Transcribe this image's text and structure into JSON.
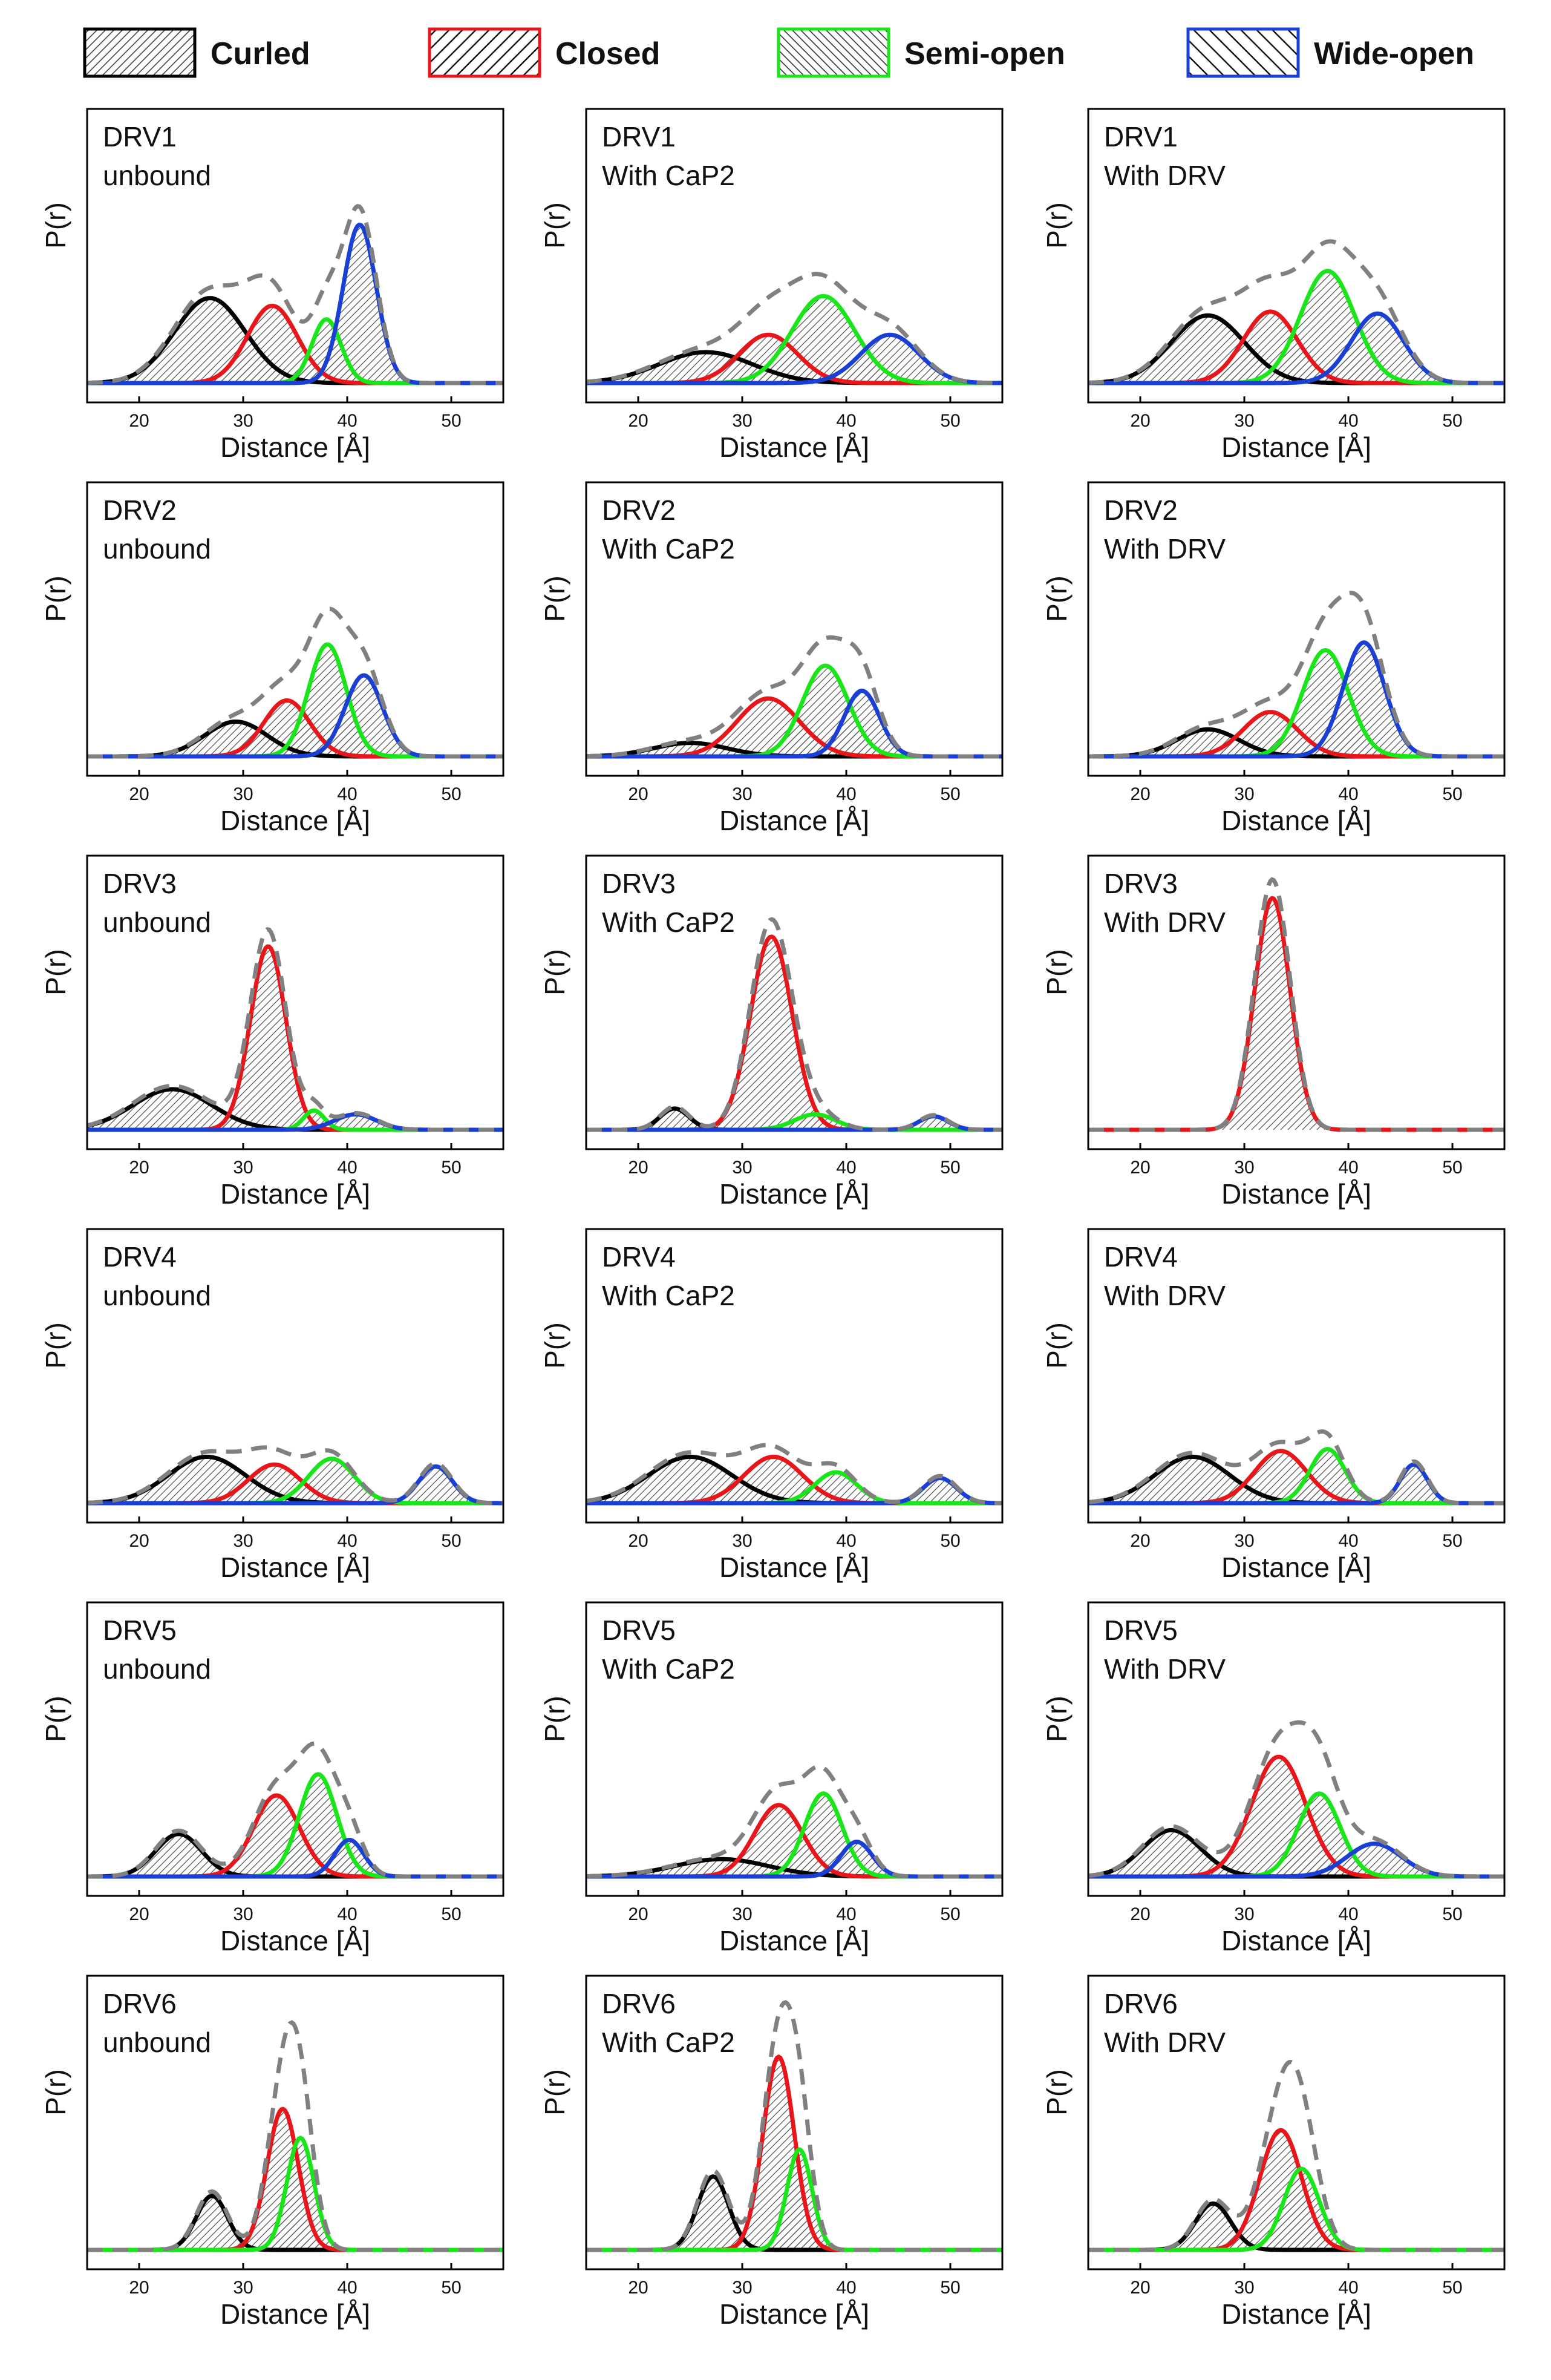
{
  "chart_data": {
    "type": "line",
    "description_series": "Gaussian fits of distance distributions P(r) for six DRV constructs under three conditions",
    "legend": [
      {
        "name": "Curled",
        "color": "#000000"
      },
      {
        "name": "Closed",
        "color": "#e8161b"
      },
      {
        "name": "Semi-open",
        "color": "#19e619"
      },
      {
        "name": "Wide-open",
        "color": "#1a3fd4"
      }
    ],
    "total_color": "#808080",
    "xlabel": "Distance [Å]",
    "ylabel": "P(r)",
    "xlim": [
      15,
      55
    ],
    "xticks": [
      20,
      30,
      40,
      50
    ],
    "panels": [
      {
        "title": "DRV1",
        "condition": "unbound",
        "ymax": 1.0,
        "components": [
          {
            "state": "Curled",
            "center": 26.8,
            "sigma": 3.4,
            "height": 0.44
          },
          {
            "state": "Closed",
            "center": 32.8,
            "sigma": 2.4,
            "height": 0.4
          },
          {
            "state": "Semi-open",
            "center": 38.0,
            "sigma": 1.4,
            "height": 0.33
          },
          {
            "state": "Wide-open",
            "center": 41.2,
            "sigma": 1.6,
            "height": 0.82
          }
        ]
      },
      {
        "title": "DRV1",
        "condition": "With CaP2",
        "ymax": 1.0,
        "components": [
          {
            "state": "Curled",
            "center": 26.5,
            "sigma": 4.5,
            "height": 0.16
          },
          {
            "state": "Closed",
            "center": 32.5,
            "sigma": 2.8,
            "height": 0.25
          },
          {
            "state": "Semi-open",
            "center": 37.8,
            "sigma": 3.0,
            "height": 0.45
          },
          {
            "state": "Wide-open",
            "center": 44.2,
            "sigma": 2.8,
            "height": 0.25
          }
        ]
      },
      {
        "title": "DRV1",
        "condition": "With DRV",
        "ymax": 1.0,
        "components": [
          {
            "state": "Curled",
            "center": 26.5,
            "sigma": 3.5,
            "height": 0.35
          },
          {
            "state": "Closed",
            "center": 32.5,
            "sigma": 2.6,
            "height": 0.37
          },
          {
            "state": "Semi-open",
            "center": 38.0,
            "sigma": 2.6,
            "height": 0.58
          },
          {
            "state": "Wide-open",
            "center": 42.8,
            "sigma": 2.5,
            "height": 0.36
          }
        ]
      },
      {
        "title": "DRV2",
        "condition": "unbound",
        "ymax": 1.0,
        "components": [
          {
            "state": "Curled",
            "center": 29.3,
            "sigma": 3.0,
            "height": 0.18
          },
          {
            "state": "Closed",
            "center": 34.2,
            "sigma": 2.2,
            "height": 0.29
          },
          {
            "state": "Semi-open",
            "center": 38.1,
            "sigma": 1.8,
            "height": 0.58
          },
          {
            "state": "Wide-open",
            "center": 41.6,
            "sigma": 1.8,
            "height": 0.42
          }
        ]
      },
      {
        "title": "DRV2",
        "condition": "With CaP2",
        "ymax": 1.0,
        "components": [
          {
            "state": "Curled",
            "center": 25.0,
            "sigma": 3.5,
            "height": 0.07
          },
          {
            "state": "Closed",
            "center": 32.5,
            "sigma": 3.0,
            "height": 0.3
          },
          {
            "state": "Semi-open",
            "center": 38.0,
            "sigma": 2.2,
            "height": 0.47
          },
          {
            "state": "Wide-open",
            "center": 41.5,
            "sigma": 1.7,
            "height": 0.34
          }
        ]
      },
      {
        "title": "DRV2",
        "condition": "With DRV",
        "ymax": 1.0,
        "components": [
          {
            "state": "Curled",
            "center": 26.5,
            "sigma": 3.0,
            "height": 0.14
          },
          {
            "state": "Closed",
            "center": 32.5,
            "sigma": 2.6,
            "height": 0.23
          },
          {
            "state": "Semi-open",
            "center": 37.8,
            "sigma": 2.2,
            "height": 0.55
          },
          {
            "state": "Wide-open",
            "center": 41.5,
            "sigma": 2.0,
            "height": 0.59
          }
        ]
      },
      {
        "title": "DRV3",
        "condition": "unbound",
        "ymax": 1.0,
        "components": [
          {
            "state": "Curled",
            "center": 23.2,
            "sigma": 3.8,
            "height": 0.21
          },
          {
            "state": "Closed",
            "center": 32.4,
            "sigma": 1.7,
            "height": 0.95
          },
          {
            "state": "Semi-open",
            "center": 36.8,
            "sigma": 1.0,
            "height": 0.1
          },
          {
            "state": "Wide-open",
            "center": 40.8,
            "sigma": 2.0,
            "height": 0.08
          }
        ]
      },
      {
        "title": "DRV3",
        "condition": "With CaP2",
        "ymax": 1.0,
        "components": [
          {
            "state": "Curled",
            "center": 23.5,
            "sigma": 1.4,
            "height": 0.11
          },
          {
            "state": "Closed",
            "center": 32.8,
            "sigma": 2.0,
            "height": 1.0
          },
          {
            "state": "Semi-open",
            "center": 37.0,
            "sigma": 2.0,
            "height": 0.08
          },
          {
            "state": "Wide-open",
            "center": 48.4,
            "sigma": 1.4,
            "height": 0.07
          }
        ]
      },
      {
        "title": "DRV3",
        "condition": "With DRV",
        "ymax": 1.0,
        "components": [
          {
            "state": "Closed",
            "center": 32.7,
            "sigma": 1.7,
            "height": 1.2
          }
        ]
      },
      {
        "title": "DRV4",
        "condition": "unbound",
        "ymax": 1.0,
        "components": [
          {
            "state": "Curled",
            "center": 26.5,
            "sigma": 3.7,
            "height": 0.24
          },
          {
            "state": "Closed",
            "center": 33.0,
            "sigma": 2.5,
            "height": 0.2
          },
          {
            "state": "Semi-open",
            "center": 38.5,
            "sigma": 2.2,
            "height": 0.23
          },
          {
            "state": "Wide-open",
            "center": 48.5,
            "sigma": 1.6,
            "height": 0.19
          }
        ]
      },
      {
        "title": "DRV4",
        "condition": "With CaP2",
        "ymax": 1.0,
        "components": [
          {
            "state": "Curled",
            "center": 25.0,
            "sigma": 4.0,
            "height": 0.24
          },
          {
            "state": "Closed",
            "center": 33.0,
            "sigma": 2.8,
            "height": 0.24
          },
          {
            "state": "Semi-open",
            "center": 39.0,
            "sigma": 2.0,
            "height": 0.16
          },
          {
            "state": "Wide-open",
            "center": 49.0,
            "sigma": 1.6,
            "height": 0.13
          }
        ]
      },
      {
        "title": "DRV4",
        "condition": "With DRV",
        "ymax": 1.0,
        "components": [
          {
            "state": "Curled",
            "center": 25.0,
            "sigma": 3.6,
            "height": 0.24
          },
          {
            "state": "Closed",
            "center": 33.5,
            "sigma": 2.5,
            "height": 0.27
          },
          {
            "state": "Semi-open",
            "center": 38.0,
            "sigma": 1.7,
            "height": 0.28
          },
          {
            "state": "Wide-open",
            "center": 46.3,
            "sigma": 1.3,
            "height": 0.2
          }
        ]
      },
      {
        "title": "DRV5",
        "condition": "unbound",
        "ymax": 1.0,
        "components": [
          {
            "state": "Curled",
            "center": 23.8,
            "sigma": 2.2,
            "height": 0.22
          },
          {
            "state": "Closed",
            "center": 33.2,
            "sigma": 2.2,
            "height": 0.42
          },
          {
            "state": "Semi-open",
            "center": 37.2,
            "sigma": 1.8,
            "height": 0.53
          },
          {
            "state": "Wide-open",
            "center": 40.2,
            "sigma": 1.4,
            "height": 0.19
          }
        ]
      },
      {
        "title": "DRV5",
        "condition": "With CaP2",
        "ymax": 1.0,
        "components": [
          {
            "state": "Curled",
            "center": 28.0,
            "sigma": 4.5,
            "height": 0.09
          },
          {
            "state": "Closed",
            "center": 33.5,
            "sigma": 2.3,
            "height": 0.37
          },
          {
            "state": "Semi-open",
            "center": 37.8,
            "sigma": 1.8,
            "height": 0.43
          },
          {
            "state": "Wide-open",
            "center": 41.0,
            "sigma": 1.5,
            "height": 0.18
          }
        ]
      },
      {
        "title": "DRV5",
        "condition": "With DRV",
        "ymax": 1.0,
        "components": [
          {
            "state": "Curled",
            "center": 23.0,
            "sigma": 2.8,
            "height": 0.24
          },
          {
            "state": "Closed",
            "center": 33.3,
            "sigma": 2.6,
            "height": 0.62
          },
          {
            "state": "Semi-open",
            "center": 37.2,
            "sigma": 2.0,
            "height": 0.43
          },
          {
            "state": "Wide-open",
            "center": 42.5,
            "sigma": 2.6,
            "height": 0.17
          }
        ]
      },
      {
        "title": "DRV6",
        "condition": "unbound",
        "ymax": 1.0,
        "components": [
          {
            "state": "Curled",
            "center": 27.0,
            "sigma": 1.5,
            "height": 0.28
          },
          {
            "state": "Closed",
            "center": 33.8,
            "sigma": 1.5,
            "height": 0.73
          },
          {
            "state": "Semi-open",
            "center": 35.5,
            "sigma": 1.3,
            "height": 0.58
          }
        ]
      },
      {
        "title": "DRV6",
        "condition": "With CaP2",
        "ymax": 1.0,
        "components": [
          {
            "state": "Curled",
            "center": 27.2,
            "sigma": 1.5,
            "height": 0.38
          },
          {
            "state": "Closed",
            "center": 33.5,
            "sigma": 1.5,
            "height": 1.0
          },
          {
            "state": "Semi-open",
            "center": 35.5,
            "sigma": 1.2,
            "height": 0.52
          }
        ]
      },
      {
        "title": "DRV6",
        "condition": "With DRV",
        "ymax": 1.0,
        "components": [
          {
            "state": "Curled",
            "center": 27.0,
            "sigma": 1.7,
            "height": 0.24
          },
          {
            "state": "Closed",
            "center": 33.5,
            "sigma": 2.0,
            "height": 0.62
          },
          {
            "state": "Semi-open",
            "center": 35.5,
            "sigma": 1.7,
            "height": 0.42
          }
        ]
      }
    ]
  }
}
